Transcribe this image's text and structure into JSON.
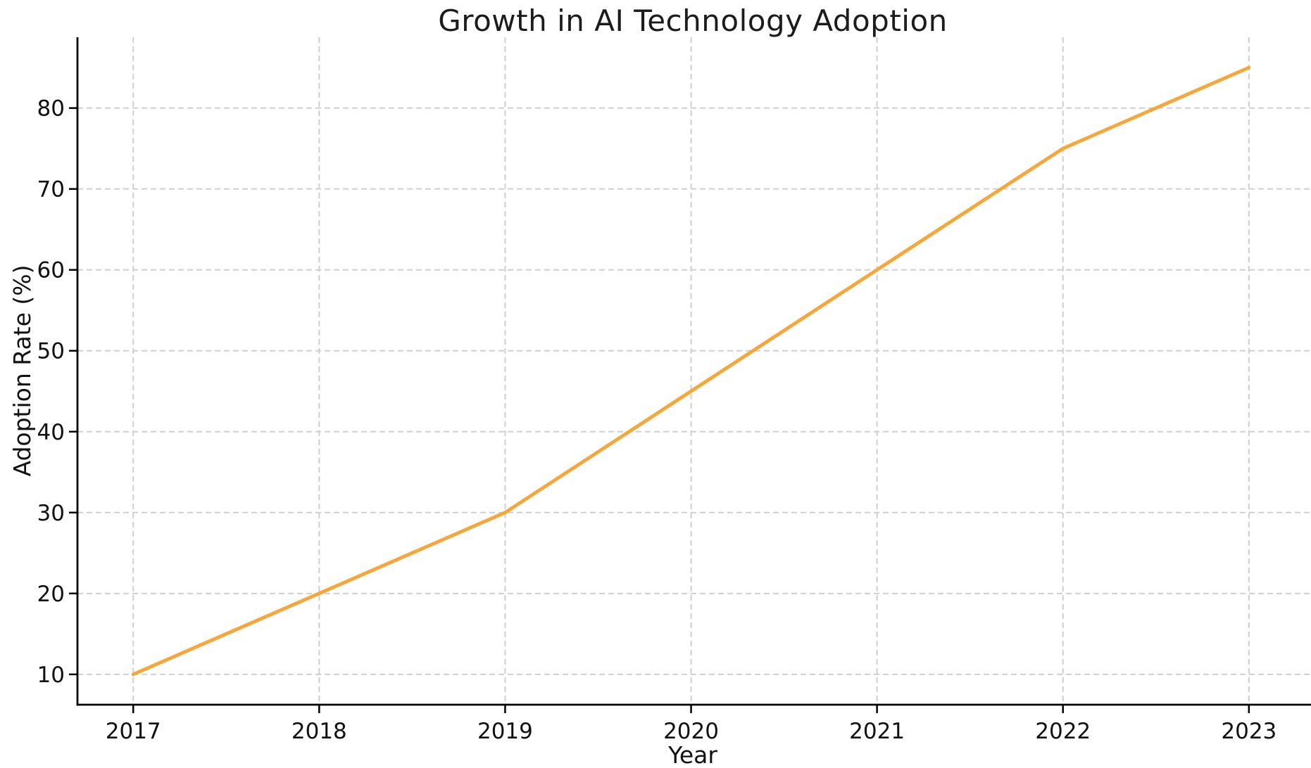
{
  "chart_data": {
    "type": "line",
    "title": "Growth in AI Technology Adoption",
    "xlabel": "Year",
    "ylabel": "Adoption Rate (%)",
    "x": [
      2017,
      2018,
      2019,
      2020,
      2021,
      2022,
      2023
    ],
    "series": [
      {
        "name": "Adoption Rate",
        "values": [
          10,
          20,
          30,
          45,
          60,
          75,
          85
        ]
      }
    ],
    "xticks": [
      2017,
      2018,
      2019,
      2020,
      2021,
      2022,
      2023
    ],
    "yticks": [
      10,
      20,
      30,
      40,
      50,
      60,
      70,
      80
    ],
    "xlim": [
      2016.7,
      2023.33
    ],
    "ylim": [
      6.25,
      88.75
    ],
    "grid": true,
    "grid_style": "dashed",
    "legend": false,
    "colors": {
      "line": "#F5A73C",
      "grid": "#CFCFCF",
      "axis": "#000000",
      "tick_label": "#111111",
      "background": "#FFFFFF"
    }
  }
}
